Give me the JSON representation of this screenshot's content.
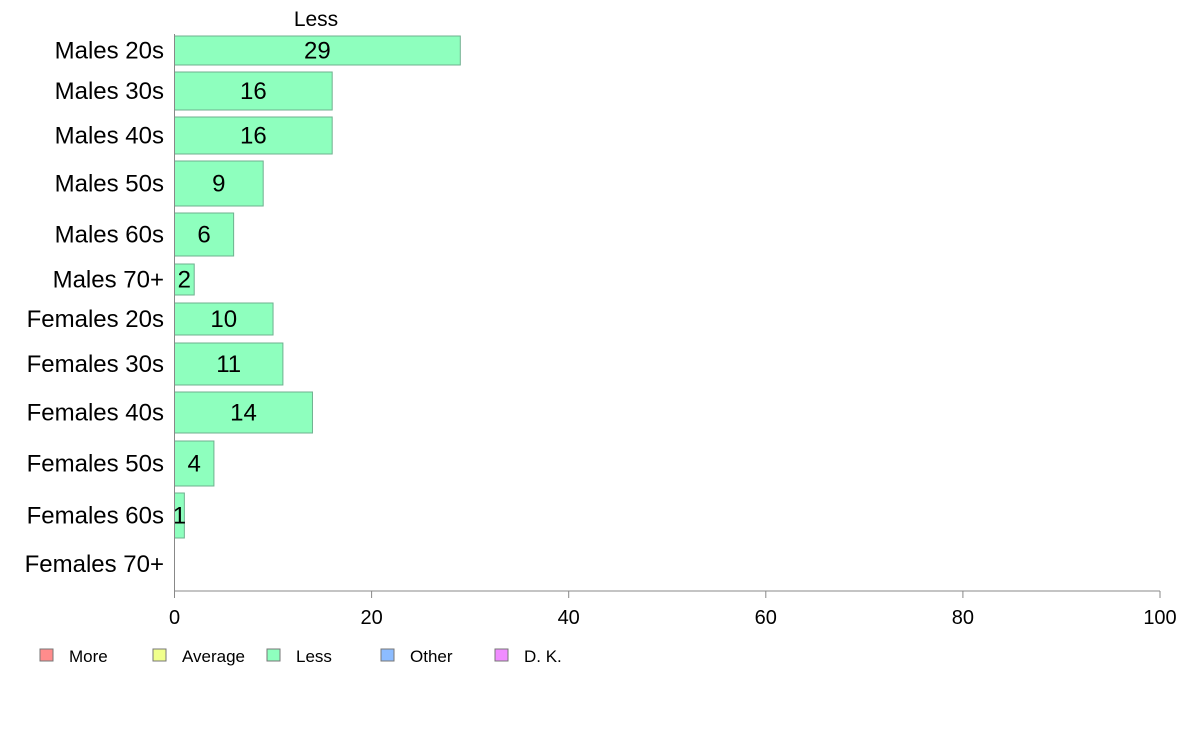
{
  "chart_data": {
    "type": "bar",
    "orientation": "horizontal",
    "title": "",
    "series_title": "Less",
    "categories": [
      "Males 20s",
      "Males 30s",
      "Males 40s",
      "Males 50s",
      "Males 60s",
      "Males 70+",
      "Females 20s",
      "Females 30s",
      "Females 40s",
      "Females 50s",
      "Females 60s",
      "Females 70+"
    ],
    "series": [
      {
        "name": "Less",
        "color": "#8effbe",
        "values": [
          29,
          16,
          16,
          9,
          6,
          2,
          10,
          11,
          14,
          4,
          1,
          0
        ]
      }
    ],
    "data_labels": [
      "29",
      "16",
      "16",
      "9",
      "6",
      "2",
      "10",
      "11",
      "14",
      "4",
      "1",
      ""
    ],
    "xlim": [
      0,
      100
    ],
    "xticks": [
      0,
      20,
      40,
      60,
      80,
      100
    ],
    "grid": false,
    "legend_position": "bottom-left",
    "legend": [
      {
        "label": "More",
        "color": "#ff8c8c"
      },
      {
        "label": "Average",
        "color": "#f0ff8c"
      },
      {
        "label": "Less",
        "color": "#8effbe"
      },
      {
        "label": "Other",
        "color": "#8cbcff"
      },
      {
        "label": "D. K.",
        "color": "#f08cff"
      }
    ]
  }
}
